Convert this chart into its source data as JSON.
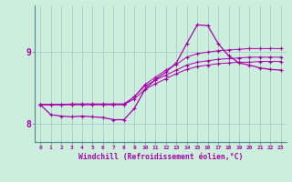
{
  "bg_color": "#cceedd",
  "line_color": "#aa00aa",
  "grid_color": "#aacccc",
  "xlabel": "Windchill (Refroidissement éolien,°C)",
  "xlim": [
    -0.5,
    23.5
  ],
  "ylim": [
    7.75,
    9.65
  ],
  "yticks": [
    8,
    9
  ],
  "xticks": [
    0,
    1,
    2,
    3,
    4,
    5,
    6,
    7,
    8,
    9,
    10,
    11,
    12,
    13,
    14,
    15,
    16,
    17,
    18,
    19,
    20,
    21,
    22,
    23
  ],
  "line1_x": [
    0,
    1,
    2,
    3,
    4,
    5,
    6,
    7,
    8,
    9,
    10,
    11,
    12,
    13,
    14,
    15,
    16,
    17,
    18,
    19,
    20,
    21,
    22,
    23
  ],
  "line1_y": [
    8.27,
    8.13,
    8.11,
    8.1,
    8.11,
    8.1,
    8.09,
    8.06,
    8.06,
    8.22,
    8.48,
    8.62,
    8.72,
    8.85,
    9.12,
    9.38,
    9.37,
    9.12,
    8.95,
    8.85,
    8.82,
    8.78,
    8.76,
    8.75
  ],
  "line2_x": [
    0,
    1,
    2,
    3,
    4,
    5,
    6,
    7,
    8,
    9,
    10,
    11,
    12,
    13,
    14,
    15,
    16,
    17,
    18,
    19,
    20,
    21,
    22,
    23
  ],
  "line2_y": [
    8.27,
    8.27,
    8.27,
    8.27,
    8.27,
    8.27,
    8.27,
    8.27,
    8.27,
    8.38,
    8.55,
    8.65,
    8.75,
    8.83,
    8.93,
    8.98,
    9.0,
    9.02,
    9.03,
    9.04,
    9.05,
    9.05,
    9.05,
    9.05
  ],
  "line3_x": [
    0,
    1,
    2,
    3,
    4,
    5,
    6,
    7,
    8,
    9,
    10,
    11,
    12,
    13,
    14,
    15,
    16,
    17,
    18,
    19,
    20,
    21,
    22,
    23
  ],
  "line3_y": [
    8.27,
    8.27,
    8.27,
    8.28,
    8.28,
    8.28,
    8.28,
    8.28,
    8.28,
    8.38,
    8.53,
    8.61,
    8.68,
    8.75,
    8.82,
    8.86,
    8.88,
    8.9,
    8.91,
    8.92,
    8.93,
    8.93,
    8.93,
    8.93
  ],
  "line4_x": [
    0,
    1,
    2,
    3,
    4,
    5,
    6,
    7,
    8,
    9,
    10,
    11,
    12,
    13,
    14,
    15,
    16,
    17,
    18,
    19,
    20,
    21,
    22,
    23
  ],
  "line4_y": [
    8.27,
    8.27,
    8.27,
    8.27,
    8.27,
    8.27,
    8.27,
    8.27,
    8.27,
    8.35,
    8.48,
    8.56,
    8.63,
    8.7,
    8.76,
    8.8,
    8.82,
    8.84,
    8.85,
    8.86,
    8.86,
    8.87,
    8.87,
    8.87
  ]
}
